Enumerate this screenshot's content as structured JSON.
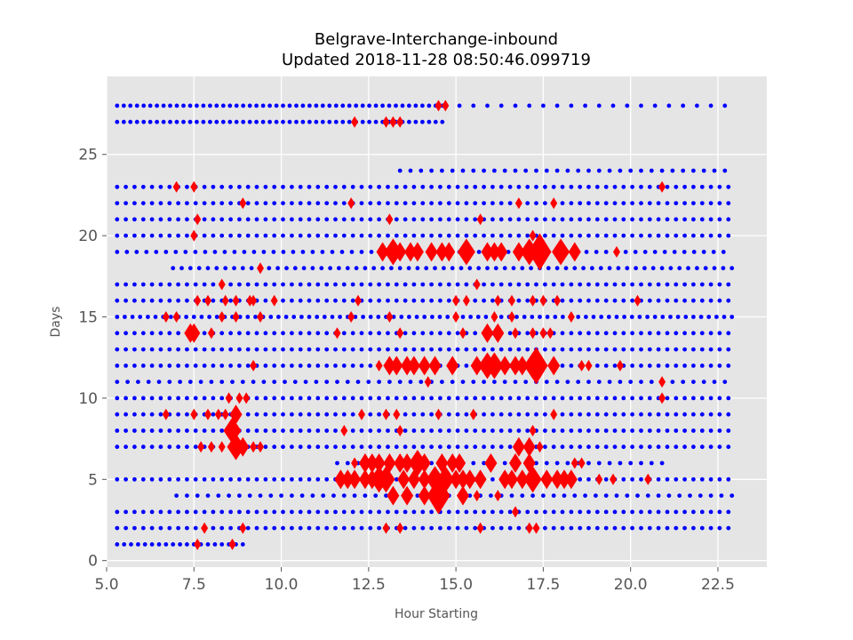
{
  "chart_data": {
    "type": "scatter",
    "title": "Belgrave-Interchange-inbound",
    "subtitle": "Updated 2018-11-28 08:50:46.099719",
    "xlabel": "Hour Starting",
    "ylabel": "Days",
    "xlim": [
      5.0,
      23.9
    ],
    "ylim": [
      -0.4,
      29.8
    ],
    "xticks": [
      "5.0",
      "7.5",
      "10.0",
      "12.5",
      "15.0",
      "17.5",
      "20.0",
      "22.5"
    ],
    "yticks": [
      "0",
      "5",
      "10",
      "15",
      "20",
      "25"
    ],
    "grid": true,
    "legend": "none",
    "background_color": "#e5e5e5",
    "grid_color": "#ffffff",
    "colors": {
      "on_time": "#0000ff",
      "delay": "#ff0000"
    },
    "series": [
      {
        "marker": "dot",
        "color": "#0000ff",
        "rows": [
          {
            "day": 28,
            "start": 5.3,
            "end": 14.7,
            "gap": 0.19
          },
          {
            "day": 28,
            "start": 15.1,
            "end": 22.8,
            "gap": 0.4
          },
          {
            "day": 27,
            "start": 5.3,
            "end": 14.7,
            "gap": 0.19
          },
          {
            "day": 24,
            "start": 13.4,
            "end": 22.8,
            "gap": 0.3
          },
          {
            "day": 23,
            "start": 5.3,
            "end": 22.8,
            "gap": 0.25
          },
          {
            "day": 22,
            "start": 5.3,
            "end": 22.8,
            "gap": 0.25
          },
          {
            "day": 21,
            "start": 5.3,
            "end": 22.9,
            "gap": 0.25
          },
          {
            "day": 20,
            "start": 5.3,
            "end": 22.9,
            "gap": 0.25
          },
          {
            "day": 19,
            "start": 5.3,
            "end": 22.9,
            "gap": 0.28
          },
          {
            "day": 18,
            "start": 6.9,
            "end": 22.9,
            "gap": 0.25
          },
          {
            "day": 17,
            "start": 5.3,
            "end": 22.9,
            "gap": 0.25
          },
          {
            "day": 16,
            "start": 5.3,
            "end": 22.9,
            "gap": 0.25
          },
          {
            "day": 15,
            "start": 5.3,
            "end": 22.9,
            "gap": 0.22
          },
          {
            "day": 14,
            "start": 5.3,
            "end": 23.0,
            "gap": 0.25
          },
          {
            "day": 13,
            "start": 5.3,
            "end": 22.9,
            "gap": 0.25
          },
          {
            "day": 12,
            "start": 5.3,
            "end": 22.9,
            "gap": 0.25
          },
          {
            "day": 11,
            "start": 5.3,
            "end": 22.9,
            "gap": 0.3
          },
          {
            "day": 10,
            "start": 5.3,
            "end": 22.9,
            "gap": 0.25
          },
          {
            "day": 9,
            "start": 5.3,
            "end": 22.9,
            "gap": 0.25
          },
          {
            "day": 8,
            "start": 5.3,
            "end": 22.9,
            "gap": 0.25
          },
          {
            "day": 7,
            "start": 5.3,
            "end": 22.9,
            "gap": 0.25
          },
          {
            "day": 6,
            "start": 11.6,
            "end": 21.0,
            "gap": 0.3
          },
          {
            "day": 5,
            "start": 5.3,
            "end": 22.9,
            "gap": 0.25
          },
          {
            "day": 4,
            "start": 7.0,
            "end": 22.9,
            "gap": 0.3
          },
          {
            "day": 3,
            "start": 5.3,
            "end": 22.9,
            "gap": 0.25
          },
          {
            "day": 2,
            "start": 5.3,
            "end": 22.9,
            "gap": 0.25
          },
          {
            "day": 1,
            "start": 5.3,
            "end": 9.0,
            "gap": 0.2
          }
        ]
      },
      {
        "marker": "diamond",
        "color": "#ff0000",
        "points": [
          [
            14.5,
            28,
            1
          ],
          [
            14.7,
            28,
            1
          ],
          [
            12.1,
            27,
            1
          ],
          [
            13.0,
            27,
            1
          ],
          [
            13.2,
            27,
            1
          ],
          [
            13.4,
            27,
            1
          ],
          [
            7.0,
            23,
            1
          ],
          [
            7.5,
            23,
            1
          ],
          [
            20.9,
            23,
            1
          ],
          [
            8.9,
            22,
            1
          ],
          [
            12.0,
            22,
            1
          ],
          [
            16.8,
            22,
            1
          ],
          [
            17.8,
            22,
            1
          ],
          [
            7.6,
            21,
            1
          ],
          [
            13.1,
            21,
            1
          ],
          [
            15.7,
            21,
            1
          ],
          [
            7.5,
            20,
            1
          ],
          [
            17.2,
            20,
            1
          ],
          [
            12.9,
            19,
            2
          ],
          [
            13.2,
            19,
            3
          ],
          [
            13.4,
            19,
            2
          ],
          [
            13.7,
            19,
            2
          ],
          [
            13.9,
            19,
            2
          ],
          [
            14.3,
            19,
            2
          ],
          [
            14.6,
            19,
            2
          ],
          [
            14.8,
            19,
            2
          ],
          [
            15.3,
            19,
            3
          ],
          [
            15.9,
            19,
            2
          ],
          [
            16.1,
            19,
            2
          ],
          [
            16.3,
            19,
            2
          ],
          [
            16.8,
            19,
            2
          ],
          [
            17.1,
            19,
            3
          ],
          [
            17.4,
            19,
            4
          ],
          [
            18.0,
            19,
            3
          ],
          [
            18.4,
            19,
            2
          ],
          [
            19.6,
            19,
            1
          ],
          [
            9.4,
            18,
            1
          ],
          [
            8.3,
            17,
            1
          ],
          [
            15.6,
            17,
            1
          ],
          [
            7.6,
            16,
            1
          ],
          [
            7.9,
            16,
            1
          ],
          [
            8.4,
            16,
            1
          ],
          [
            8.7,
            16,
            1
          ],
          [
            9.1,
            16,
            1
          ],
          [
            9.2,
            16,
            1
          ],
          [
            9.8,
            16,
            1
          ],
          [
            12.2,
            16,
            1
          ],
          [
            15.0,
            16,
            1
          ],
          [
            15.3,
            16,
            1
          ],
          [
            16.2,
            16,
            1
          ],
          [
            16.6,
            16,
            1
          ],
          [
            17.2,
            16,
            1
          ],
          [
            17.5,
            16,
            1
          ],
          [
            17.9,
            16,
            1
          ],
          [
            20.2,
            16,
            1
          ],
          [
            6.7,
            15,
            1
          ],
          [
            7.0,
            15,
            1
          ],
          [
            8.3,
            15,
            1
          ],
          [
            8.7,
            15,
            1
          ],
          [
            9.4,
            15,
            1
          ],
          [
            12.0,
            15,
            1
          ],
          [
            13.1,
            15,
            1
          ],
          [
            15.0,
            15,
            1
          ],
          [
            16.1,
            15,
            1
          ],
          [
            16.6,
            15,
            1
          ],
          [
            18.3,
            15,
            1
          ],
          [
            7.4,
            14,
            2
          ],
          [
            7.5,
            14,
            2
          ],
          [
            8.0,
            14,
            1
          ],
          [
            11.6,
            14,
            1
          ],
          [
            13.4,
            14,
            1
          ],
          [
            15.2,
            14,
            1
          ],
          [
            15.9,
            14,
            2
          ],
          [
            16.2,
            14,
            2
          ],
          [
            16.7,
            14,
            1
          ],
          [
            17.2,
            14,
            1
          ],
          [
            17.5,
            14,
            1
          ],
          [
            17.7,
            14,
            1
          ],
          [
            9.2,
            12,
            1
          ],
          [
            12.8,
            12,
            1
          ],
          [
            13.1,
            12,
            2
          ],
          [
            13.3,
            12,
            2
          ],
          [
            13.6,
            12,
            2
          ],
          [
            13.8,
            12,
            2
          ],
          [
            14.1,
            12,
            2
          ],
          [
            14.4,
            12,
            2
          ],
          [
            14.9,
            12,
            2
          ],
          [
            15.6,
            12,
            2
          ],
          [
            15.9,
            12,
            3
          ],
          [
            16.1,
            12,
            3
          ],
          [
            16.4,
            12,
            2
          ],
          [
            16.7,
            12,
            2
          ],
          [
            16.9,
            12,
            2
          ],
          [
            17.2,
            12,
            3
          ],
          [
            17.3,
            12,
            4
          ],
          [
            17.8,
            12,
            2
          ],
          [
            18.6,
            12,
            1
          ],
          [
            18.8,
            12,
            1
          ],
          [
            19.7,
            12,
            1
          ],
          [
            14.2,
            11,
            1
          ],
          [
            20.9,
            11,
            1
          ],
          [
            8.5,
            10,
            1
          ],
          [
            8.8,
            10,
            1
          ],
          [
            9.0,
            10,
            1
          ],
          [
            20.9,
            10,
            1
          ],
          [
            6.7,
            9,
            1
          ],
          [
            7.5,
            9,
            1
          ],
          [
            7.9,
            9,
            1
          ],
          [
            8.2,
            9,
            1
          ],
          [
            8.4,
            9,
            1
          ],
          [
            8.7,
            9,
            2
          ],
          [
            12.3,
            9,
            1
          ],
          [
            13.0,
            9,
            1
          ],
          [
            13.3,
            9,
            1
          ],
          [
            14.5,
            9,
            1
          ],
          [
            15.5,
            9,
            1
          ],
          [
            17.8,
            9,
            1
          ],
          [
            8.6,
            8,
            3
          ],
          [
            11.8,
            8,
            1
          ],
          [
            13.4,
            8,
            1
          ],
          [
            17.2,
            8,
            1
          ],
          [
            7.7,
            7,
            1
          ],
          [
            8.0,
            7,
            1
          ],
          [
            8.3,
            7,
            1
          ],
          [
            8.7,
            7,
            3
          ],
          [
            8.9,
            7,
            2
          ],
          [
            9.2,
            7,
            1
          ],
          [
            9.4,
            7,
            1
          ],
          [
            16.8,
            7,
            2
          ],
          [
            17.1,
            7,
            2
          ],
          [
            17.4,
            7,
            1
          ],
          [
            12.1,
            6,
            1
          ],
          [
            12.4,
            6,
            2
          ],
          [
            12.6,
            6,
            2
          ],
          [
            12.8,
            6,
            2
          ],
          [
            13.1,
            6,
            2
          ],
          [
            13.4,
            6,
            2
          ],
          [
            13.6,
            6,
            2
          ],
          [
            13.9,
            6,
            3
          ],
          [
            14.1,
            6,
            2
          ],
          [
            14.6,
            6,
            2
          ],
          [
            14.9,
            6,
            2
          ],
          [
            15.1,
            6,
            2
          ],
          [
            16.0,
            6,
            2
          ],
          [
            16.7,
            6,
            2
          ],
          [
            17.1,
            6,
            2
          ],
          [
            18.4,
            6,
            1
          ],
          [
            18.6,
            6,
            1
          ],
          [
            11.7,
            5,
            2
          ],
          [
            11.9,
            5,
            2
          ],
          [
            12.1,
            5,
            2
          ],
          [
            12.4,
            5,
            2
          ],
          [
            12.6,
            5,
            2
          ],
          [
            12.8,
            5,
            3
          ],
          [
            13.0,
            5,
            3
          ],
          [
            13.5,
            5,
            2
          ],
          [
            13.8,
            5,
            2
          ],
          [
            14.1,
            5,
            2
          ],
          [
            14.4,
            5,
            3
          ],
          [
            14.7,
            5,
            3
          ],
          [
            15.0,
            5,
            2
          ],
          [
            15.2,
            5,
            2
          ],
          [
            15.4,
            5,
            2
          ],
          [
            15.7,
            5,
            2
          ],
          [
            16.4,
            5,
            2
          ],
          [
            16.6,
            5,
            2
          ],
          [
            16.9,
            5,
            2
          ],
          [
            17.2,
            5,
            3
          ],
          [
            17.6,
            5,
            2
          ],
          [
            17.9,
            5,
            2
          ],
          [
            18.1,
            5,
            2
          ],
          [
            18.3,
            5,
            2
          ],
          [
            19.1,
            5,
            1
          ],
          [
            19.5,
            5,
            1
          ],
          [
            20.5,
            5,
            1
          ],
          [
            13.2,
            4,
            2
          ],
          [
            13.6,
            4,
            2
          ],
          [
            14.1,
            4,
            2
          ],
          [
            14.5,
            4,
            4
          ],
          [
            15.2,
            4,
            2
          ],
          [
            15.6,
            4,
            1
          ],
          [
            16.2,
            4,
            1
          ],
          [
            16.7,
            3,
            1
          ],
          [
            7.8,
            2,
            1
          ],
          [
            8.9,
            2,
            1
          ],
          [
            13.0,
            2,
            1
          ],
          [
            13.4,
            2,
            1
          ],
          [
            15.7,
            2,
            1
          ],
          [
            17.1,
            2,
            1
          ],
          [
            17.3,
            2,
            1
          ],
          [
            7.6,
            1,
            1
          ],
          [
            8.6,
            1,
            1
          ]
        ]
      }
    ]
  }
}
